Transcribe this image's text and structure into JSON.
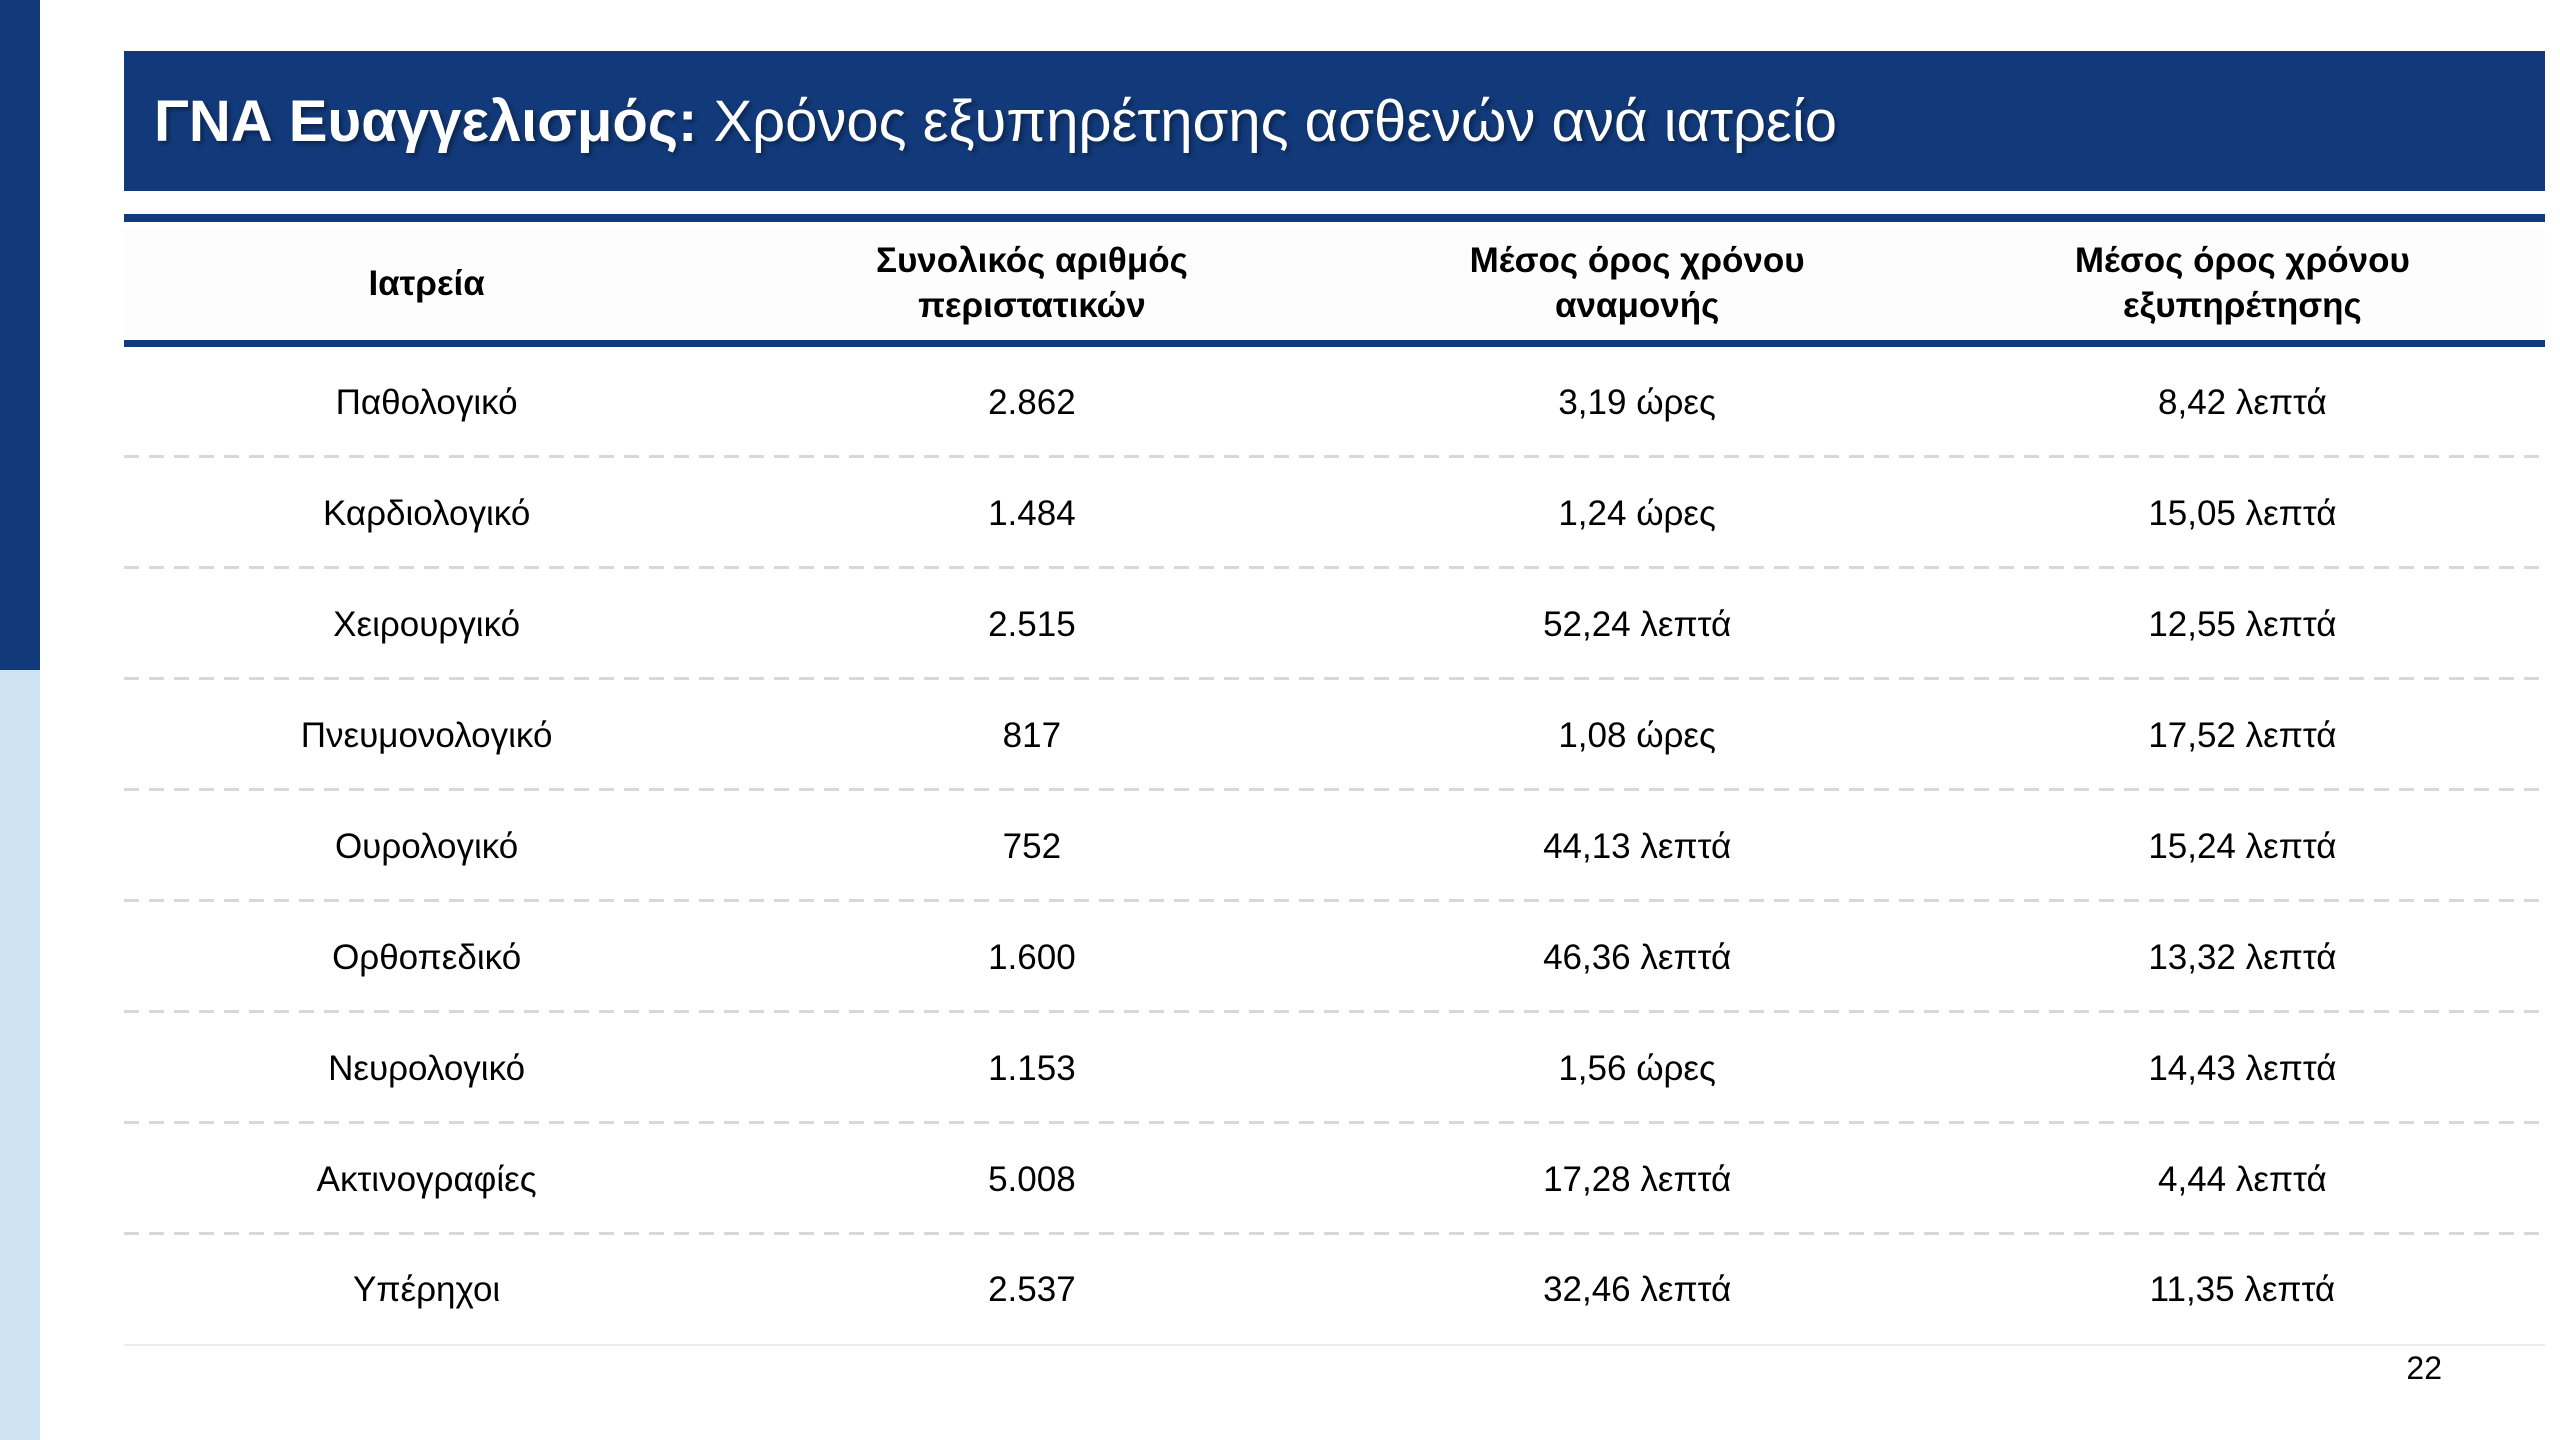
{
  "colors": {
    "navy": "#123a7a",
    "light_blue": "#cfe2f4",
    "row_separator": "#d8d8d8"
  },
  "title": {
    "prefix": "ΓΝΑ Ευαγγελισμός: ",
    "rest": "Χρόνος εξυπηρέτησης ασθενών ανά ιατρείο"
  },
  "table": {
    "columns": [
      "Ιατρεία",
      "Συνολικός αριθμός\nπεριστατικών",
      "Μέσος όρος χρόνου\nαναμονής",
      "Μέσος όρος χρόνου\nεξυπηρέτησης"
    ],
    "rows": [
      {
        "clinic": "Παθολογικό",
        "total_cases": "2.862",
        "avg_wait": "3,19 ώρες",
        "avg_service": "8,42 λεπτά"
      },
      {
        "clinic": "Καρδιολογικό",
        "total_cases": "1.484",
        "avg_wait": "1,24 ώρες",
        "avg_service": "15,05 λεπτά"
      },
      {
        "clinic": "Χειρουργικό",
        "total_cases": "2.515",
        "avg_wait": "52,24 λεπτά",
        "avg_service": "12,55 λεπτά"
      },
      {
        "clinic": "Πνευμονολογικό",
        "total_cases": "817",
        "avg_wait": "1,08 ώρες",
        "avg_service": "17,52 λεπτά"
      },
      {
        "clinic": "Ουρολογικό",
        "total_cases": "752",
        "avg_wait": "44,13 λεπτά",
        "avg_service": "15,24 λεπτά"
      },
      {
        "clinic": "Ορθοπεδικό",
        "total_cases": "1.600",
        "avg_wait": "46,36 λεπτά",
        "avg_service": "13,32 λεπτά"
      },
      {
        "clinic": "Νευρολογικό",
        "total_cases": "1.153",
        "avg_wait": "1,56 ώρες",
        "avg_service": "14,43 λεπτά"
      },
      {
        "clinic": "Ακτινογραφίες",
        "total_cases": "5.008",
        "avg_wait": "17,28 λεπτά",
        "avg_service": "4,44 λεπτά"
      },
      {
        "clinic": "Υπέρηχοι",
        "total_cases": "2.537",
        "avg_wait": "32,46 λεπτά",
        "avg_service": "11,35 λεπτά"
      }
    ]
  },
  "page_number": "22"
}
